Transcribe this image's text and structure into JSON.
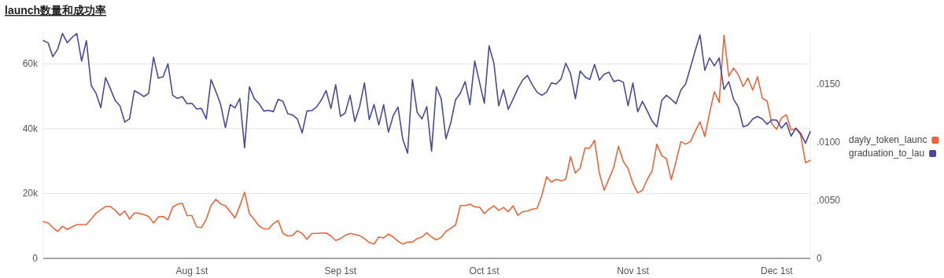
{
  "chart_data": {
    "type": "line",
    "title": "launch数量和成功率",
    "x": [
      "--07-01",
      "--07-02",
      "--07-03",
      "--07-04",
      "--07-05",
      "--07-06",
      "--07-07",
      "--07-08",
      "--07-09",
      "--07-10",
      "--07-11",
      "--07-12",
      "--07-13",
      "--07-14",
      "--07-15",
      "--07-16",
      "--07-17",
      "--07-18",
      "--07-19",
      "--07-20",
      "--07-21",
      "--07-22",
      "--07-23",
      "--07-24",
      "--07-25",
      "--07-26",
      "--07-27",
      "--07-28",
      "--07-29",
      "--07-30",
      "--07-31",
      "--08-01",
      "--08-02",
      "--08-03",
      "--08-04",
      "--08-05",
      "--08-06",
      "--08-07",
      "--08-08",
      "--08-09",
      "--08-10",
      "--08-11",
      "--08-12",
      "--08-13",
      "--08-14",
      "--08-15",
      "--08-16",
      "--08-17",
      "--08-18",
      "--08-19",
      "--08-20",
      "--08-21",
      "--08-22",
      "--08-23",
      "--08-24",
      "--08-25",
      "--08-26",
      "--08-27",
      "--08-28",
      "--08-29",
      "--08-30",
      "--08-31",
      "--09-01",
      "--09-02",
      "--09-03",
      "--09-04",
      "--09-05",
      "--09-06",
      "--09-07",
      "--09-08",
      "--09-09",
      "--09-10",
      "--09-11",
      "--09-12",
      "--09-13",
      "--09-14",
      "--09-15",
      "--09-16",
      "--09-17",
      "--09-18",
      "--09-19",
      "--09-20",
      "--09-21",
      "--09-22",
      "--09-23",
      "--09-24",
      "--09-25",
      "--09-26",
      "--09-27",
      "--09-28",
      "--09-29",
      "--09-30",
      "--10-01",
      "--10-02",
      "--10-03",
      "--10-04",
      "--10-05",
      "--10-06",
      "--10-07",
      "--10-08",
      "--10-09",
      "--10-10",
      "--10-11",
      "--10-12",
      "--10-13",
      "--10-14",
      "--10-15",
      "--10-16",
      "--10-17",
      "--10-18",
      "--10-19",
      "--10-20",
      "--10-21",
      "--10-22",
      "--10-23",
      "--10-24",
      "--10-25",
      "--10-26",
      "--10-27",
      "--10-28",
      "--10-29",
      "--10-30",
      "--10-31",
      "--11-01",
      "--11-02",
      "--11-03",
      "--11-04",
      "--11-05",
      "--11-06",
      "--11-07",
      "--11-08",
      "--11-09",
      "--11-10",
      "--11-11",
      "--11-12",
      "--11-13",
      "--11-14",
      "--11-15",
      "--11-16",
      "--11-17",
      "--11-18",
      "--11-19",
      "--11-20",
      "--11-21",
      "--11-22",
      "--11-23",
      "--11-24",
      "--11-25",
      "--11-26",
      "--11-27",
      "--11-28",
      "--11-29",
      "--11-30",
      "--12-01",
      "--12-02",
      "--12-03",
      "--12-04",
      "--12-05",
      "--12-06",
      "--12-07",
      "--12-08"
    ],
    "series": [
      {
        "name": "dayly_token_launc",
        "color": "#e8663c",
        "values": [
          11300,
          10900,
          9500,
          8300,
          9900,
          8900,
          9700,
          10400,
          10400,
          10400,
          12100,
          13900,
          15000,
          16000,
          16000,
          14800,
          13300,
          14600,
          12100,
          14000,
          13900,
          13500,
          12900,
          10900,
          12800,
          12900,
          11900,
          15800,
          16700,
          17000,
          13200,
          13200,
          9700,
          9500,
          12100,
          16300,
          18200,
          16800,
          16200,
          14400,
          12500,
          16200,
          20400,
          13800,
          12000,
          10000,
          9100,
          9100,
          10700,
          11700,
          7700,
          6900,
          7100,
          8500,
          7700,
          5900,
          7700,
          7700,
          7800,
          7800,
          6900,
          5500,
          6100,
          7100,
          7700,
          7400,
          7000,
          6100,
          4900,
          4400,
          6600,
          6300,
          7500,
          6600,
          5300,
          4400,
          5000,
          5000,
          6100,
          6600,
          7900,
          6600,
          5700,
          6500,
          8300,
          9300,
          10300,
          16300,
          16300,
          16700,
          15900,
          15800,
          13800,
          15200,
          16200,
          14800,
          15700,
          14400,
          16200,
          13300,
          14400,
          14600,
          15200,
          15400,
          19400,
          25200,
          23500,
          24400,
          23900,
          24400,
          31400,
          26300,
          27900,
          34000,
          34000,
          36400,
          26300,
          21000,
          24500,
          28100,
          34600,
          29900,
          27700,
          23100,
          20200,
          21000,
          24400,
          26900,
          35200,
          31700,
          30700,
          24300,
          29900,
          36000,
          35200,
          36000,
          39200,
          42100,
          37600,
          44900,
          51400,
          48100,
          68800,
          56200,
          58700,
          56600,
          53000,
          55600,
          51900,
          56000,
          49400,
          48500,
          41400,
          39800,
          43300,
          44300,
          39600,
          40000,
          38000,
          29500,
          30200
        ]
      },
      {
        "name": "graduation_to_lau",
        "color": "#4a4a97",
        "axis": "y2",
        "values": [
          0.01871,
          0.01853,
          0.01733,
          0.01797,
          0.01932,
          0.01853,
          0.01898,
          0.01932,
          0.01695,
          0.01871,
          0.01485,
          0.01419,
          0.01295,
          0.01553,
          0.01458,
          0.01356,
          0.01311,
          0.01171,
          0.01198,
          0.0144,
          0.01419,
          0.0139,
          0.01419,
          0.01729,
          0.01548,
          0.0156,
          0.01672,
          0.01401,
          0.01374,
          0.0139,
          0.01329,
          0.01333,
          0.01284,
          0.01288,
          0.01198,
          0.01537,
          0.01435,
          0.01322,
          0.01123,
          0.01322,
          0.01293,
          0.01374,
          0.0095,
          0.01474,
          0.01374,
          0.01329,
          0.01266,
          0.01272,
          0.01261,
          0.01367,
          0.01349,
          0.01243,
          0.01232,
          0.01198,
          0.01078,
          0.01266,
          0.0127,
          0.013,
          0.01361,
          0.01442,
          0.01288,
          0.01492,
          0.0122,
          0.0125,
          0.01401,
          0.01175,
          0.01306,
          0.01507,
          0.01193,
          0.01322,
          0.01146,
          0.0132,
          0.01085,
          0.01225,
          0.013,
          0.01022,
          0.00904,
          0.01537,
          0.01254,
          0.01198,
          0.01304,
          0.00922,
          0.01474,
          0.01372,
          0.01028,
          0.01164,
          0.01361,
          0.01419,
          0.01519,
          0.01322,
          0.01695,
          0.01514,
          0.01333,
          0.01826,
          0.01677,
          0.01311,
          0.01451,
          0.01281,
          0.01367,
          0.01458,
          0.01532,
          0.01571,
          0.01492,
          0.01428,
          0.01401,
          0.01428,
          0.01507,
          0.01498,
          0.01541,
          0.01677,
          0.01587,
          0.01372,
          0.01611,
          0.0156,
          0.01537,
          0.01666,
          0.01532,
          0.01582,
          0.016,
          0.01519,
          0.01532,
          0.01514,
          0.01311,
          0.01507,
          0.01259,
          0.01349,
          0.01266,
          0.0118,
          0.0113,
          0.01356,
          0.01401,
          0.01367,
          0.01329,
          0.01446,
          0.01498,
          0.01639,
          0.01785,
          0.01921,
          0.01616,
          0.01722,
          0.01654,
          0.01722,
          0.01451,
          0.01519,
          0.01367,
          0.013,
          0.0113,
          0.01146,
          0.01198,
          0.0122,
          0.01198,
          0.01153,
          0.01191,
          0.01187,
          0.01119,
          0.01168,
          0.01051,
          0.01119,
          0.01074,
          0.0099,
          0.01089
        ]
      }
    ],
    "xlim": [
      "--07-01",
      "--12-08"
    ],
    "xticks": [
      {
        "value": "--08-01",
        "label": "Aug 1st"
      },
      {
        "value": "--09-01",
        "label": "Sep 1st"
      },
      {
        "value": "--10-01",
        "label": "Oct 1st"
      },
      {
        "value": "--11-01",
        "label": "Nov 1st"
      },
      {
        "value": "--12-01",
        "label": "Dec 1st"
      }
    ],
    "ylim": [
      0,
      70000
    ],
    "yticks": [
      {
        "value": 0,
        "label": "0"
      },
      {
        "value": 20000,
        "label": "20k"
      },
      {
        "value": 40000,
        "label": "40k"
      },
      {
        "value": 60000,
        "label": "60k"
      }
    ],
    "y2lim": [
      0,
      0.0195
    ],
    "y2ticks": [
      {
        "value": 0,
        "label": "0"
      },
      {
        "value": 0.005,
        "label": ".0050"
      },
      {
        "value": 0.01,
        "label": ".0100"
      },
      {
        "value": 0.015,
        "label": ".0150"
      }
    ],
    "grid": "y",
    "legend": "right",
    "marker": "none",
    "line_style": "solid"
  }
}
